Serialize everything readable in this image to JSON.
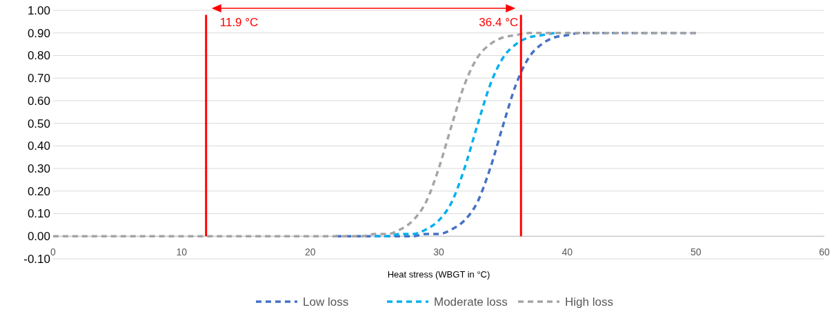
{
  "chart_data": {
    "type": "line",
    "xlabel": "Heat stress (WBGT in °C)",
    "x": [
      0,
      5,
      10,
      15,
      20,
      22,
      24,
      25,
      26,
      27,
      28,
      29,
      30,
      31,
      32,
      33,
      34,
      35,
      36,
      37,
      38,
      39,
      40,
      41,
      42,
      43,
      44,
      45,
      46,
      47,
      48,
      49,
      50
    ],
    "series": [
      {
        "name": "Low loss",
        "color": "#4472c4",
        "values": [
          null,
          null,
          null,
          null,
          null,
          0,
          0,
          0,
          0,
          0,
          0,
          0.01,
          0.01,
          0.03,
          0.07,
          0.15,
          0.3,
          0.49,
          0.67,
          0.79,
          0.85,
          0.88,
          0.89,
          0.9,
          0.9,
          0.9,
          0.9,
          0.9,
          0.9,
          0.9,
          0.9,
          0.9,
          0.9
        ]
      },
      {
        "name": "Moderate loss",
        "color": "#00b0f0",
        "values": [
          null,
          null,
          null,
          null,
          null,
          null,
          null,
          0,
          0,
          0.01,
          0.01,
          0.03,
          0.07,
          0.15,
          0.3,
          0.49,
          0.67,
          0.79,
          0.85,
          0.88,
          0.89,
          0.9,
          null,
          null,
          null,
          null,
          null,
          null,
          null,
          null,
          null,
          null,
          null
        ]
      },
      {
        "name": "High loss",
        "color": "#a5a5a5",
        "values": [
          0,
          0,
          0,
          0,
          0,
          0,
          0,
          0.01,
          0.01,
          0.03,
          0.07,
          0.15,
          0.3,
          0.49,
          0.67,
          0.79,
          0.85,
          0.88,
          0.89,
          0.9,
          0.9,
          0.9,
          0.9,
          0.9,
          0.9,
          0.9,
          0.9,
          0.9,
          0.9,
          0.9,
          0.9,
          0.9,
          0.9
        ]
      }
    ],
    "xlim": [
      0,
      60
    ],
    "xticks": [
      0,
      10,
      20,
      30,
      40,
      50,
      60
    ],
    "ylim": [
      -0.1,
      1.0
    ],
    "yticks": [
      {
        "value": -0.1,
        "label": "-0.10"
      },
      {
        "value": 0,
        "label": "0.00"
      },
      {
        "value": 0.1,
        "label": "0.10"
      },
      {
        "value": 0.2,
        "label": "0.20"
      },
      {
        "value": 0.3,
        "label": "0.30"
      },
      {
        "value": 0.4,
        "label": "0.40"
      },
      {
        "value": 0.5,
        "label": "0.50"
      },
      {
        "value": 0.6,
        "label": "0.60"
      },
      {
        "value": 0.7,
        "label": "0.70"
      },
      {
        "value": 0.8,
        "label": "0.80"
      },
      {
        "value": 0.9,
        "label": "0.90"
      },
      {
        "value": 1.0,
        "label": "1.00"
      }
    ],
    "ref_lines": [
      {
        "axis": "x",
        "value": 11.9,
        "label": "11.9 °C",
        "color": "#ff0000"
      },
      {
        "axis": "x",
        "value": 36.4,
        "label": "36.4 °C",
        "color": "#ff0000"
      }
    ],
    "grid": "y",
    "legend": "bottom",
    "line_style": "dashed",
    "marker": "none"
  }
}
